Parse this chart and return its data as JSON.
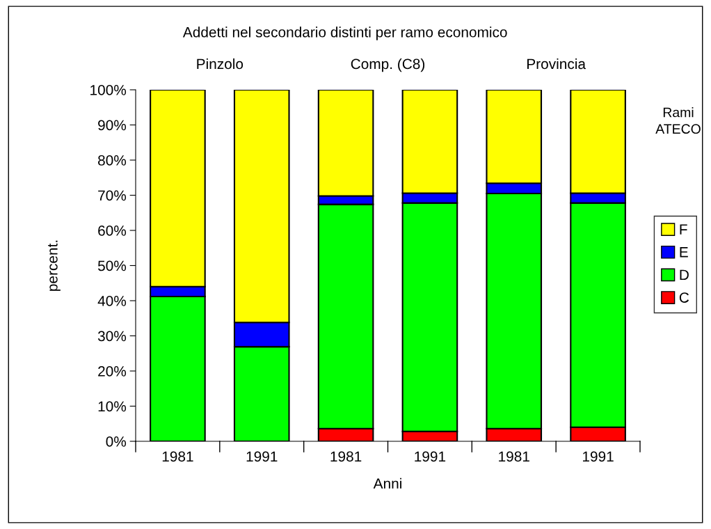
{
  "chart_data": {
    "type": "bar",
    "stacked": true,
    "title": "Addetti nel secondario distinti per ramo economico",
    "xlabel": "Anni",
    "ylabel": "percent.",
    "legend_title": "Rami\nATECO",
    "legend": "right",
    "categories": [
      "1981",
      "1991",
      "1981",
      "1991",
      "1981",
      "1991"
    ],
    "series": [
      {
        "name": "C",
        "color": "#ff0000",
        "values": [
          0,
          0,
          3.6,
          2.8,
          3.6,
          4.0
        ]
      },
      {
        "name": "D",
        "color": "#00ff00",
        "values": [
          41.2,
          26.9,
          63.8,
          65.0,
          66.9,
          63.8
        ]
      },
      {
        "name": "E",
        "color": "#0000ff",
        "values": [
          2.8,
          6.9,
          2.4,
          2.8,
          2.9,
          2.8
        ]
      },
      {
        "name": "F",
        "color": "#ffff00",
        "values": [
          56.0,
          66.2,
          30.2,
          29.4,
          26.6,
          29.4
        ]
      }
    ],
    "ylim": [
      0,
      100
    ],
    "yticks": [
      {
        "value": 0,
        "label": "0%"
      },
      {
        "value": 10,
        "label": "10%"
      },
      {
        "value": 20,
        "label": "20%"
      },
      {
        "value": 30,
        "label": "30%"
      },
      {
        "value": 40,
        "label": "40%"
      },
      {
        "value": 50,
        "label": "50%"
      },
      {
        "value": 60,
        "label": "60%"
      },
      {
        "value": 70,
        "label": "70%"
      },
      {
        "value": 80,
        "label": "80%"
      },
      {
        "value": 90,
        "label": "90%"
      },
      {
        "value": 100,
        "label": "100%"
      }
    ],
    "grid": false,
    "annotations": [
      "Pinzolo",
      "Comp. (C8)",
      "Provincia"
    ]
  }
}
